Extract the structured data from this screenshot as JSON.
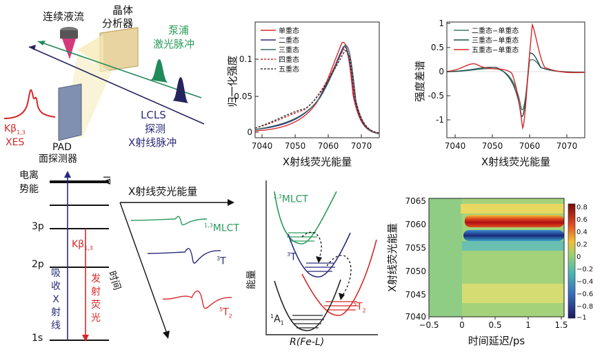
{
  "setup": {
    "liquid_jet": "连续液流",
    "crystal_analyzer": [
      "晶体",
      "分析器"
    ],
    "pump": [
      "泵浦",
      "激光脉冲"
    ],
    "probe": [
      "LCLS",
      "探测",
      "X射线脉冲"
    ],
    "xes_line": "Kβ",
    "xes_sub": "1,3",
    "xes": "XES",
    "pad": [
      "PAD",
      "面探测器"
    ]
  },
  "chart_top_left": {
    "ylabel": "归一化强度",
    "xlabel": "X射线荧光能量",
    "x_ticks": [
      "7040",
      "7050",
      "7060",
      "7070"
    ],
    "y_ticks": [
      "0",
      "0.05",
      "0.1"
    ],
    "legend": [
      "单重态",
      "二重态",
      "三重态",
      "四重态",
      "五重态"
    ]
  },
  "chart_top_right": {
    "ylabel": "强度差谱",
    "xlabel": "X射线荧光能量",
    "x_ticks": [
      "7040",
      "7050",
      "7060",
      "7070"
    ],
    "y_ticks": [
      "1",
      "0.5",
      "0",
      "-0.5",
      "-1"
    ],
    "legend": [
      "二重态−单重态",
      "三重态−单重态",
      "五重态−单重态"
    ]
  },
  "levels": {
    "ionization": [
      "电离",
      "势能"
    ],
    "p3": "3p",
    "p2": "2p",
    "s1": "1s",
    "kb": "Kβ",
    "kb_sub": "1,3",
    "absorb": [
      "吸",
      "收",
      "X",
      "射",
      "线"
    ],
    "emit": [
      "发",
      "射",
      "荧",
      "光"
    ]
  },
  "time_panel": {
    "delta": "ΔI",
    "energy_axis": "X射线荧光能量",
    "time_axis": "时间",
    "mlct_sup": "1,3",
    "mlct": "MLCT",
    "t3_sup": "3",
    "t3": "T",
    "t5_sup": "5",
    "t5": "T",
    "t5_sub": "2"
  },
  "potential": {
    "mlct_sup": "1,3",
    "mlct": "MLCT",
    "t3_sup": "3",
    "t3": "T",
    "t5_sup": "5",
    "t5": "T",
    "t5_sub": "2",
    "a1_sup": "1",
    "a1": "A",
    "a1_sub": "1",
    "ylabel": "能量",
    "xlabel": "R(Fe-L)"
  },
  "heatmap": {
    "ylabel": "X射线荧光能量",
    "xlabel": "时间延迟/ps",
    "x_ticks": [
      "−0.5",
      "0",
      "0.5",
      "1",
      "1.5"
    ],
    "y_ticks": [
      "7065",
      "7060",
      "7055",
      "7050",
      "7045",
      "7040"
    ],
    "colorbar_ticks": [
      "0.8",
      "0.6",
      "0.4",
      "0.2",
      "0",
      "−0.2",
      "−0.4",
      "−0.6",
      "−0.8",
      "−1"
    ]
  },
  "colors": {
    "red": "#d62828",
    "green": "#2a9a5a",
    "navy": "#2a2a7a",
    "dark": "#333333"
  }
}
